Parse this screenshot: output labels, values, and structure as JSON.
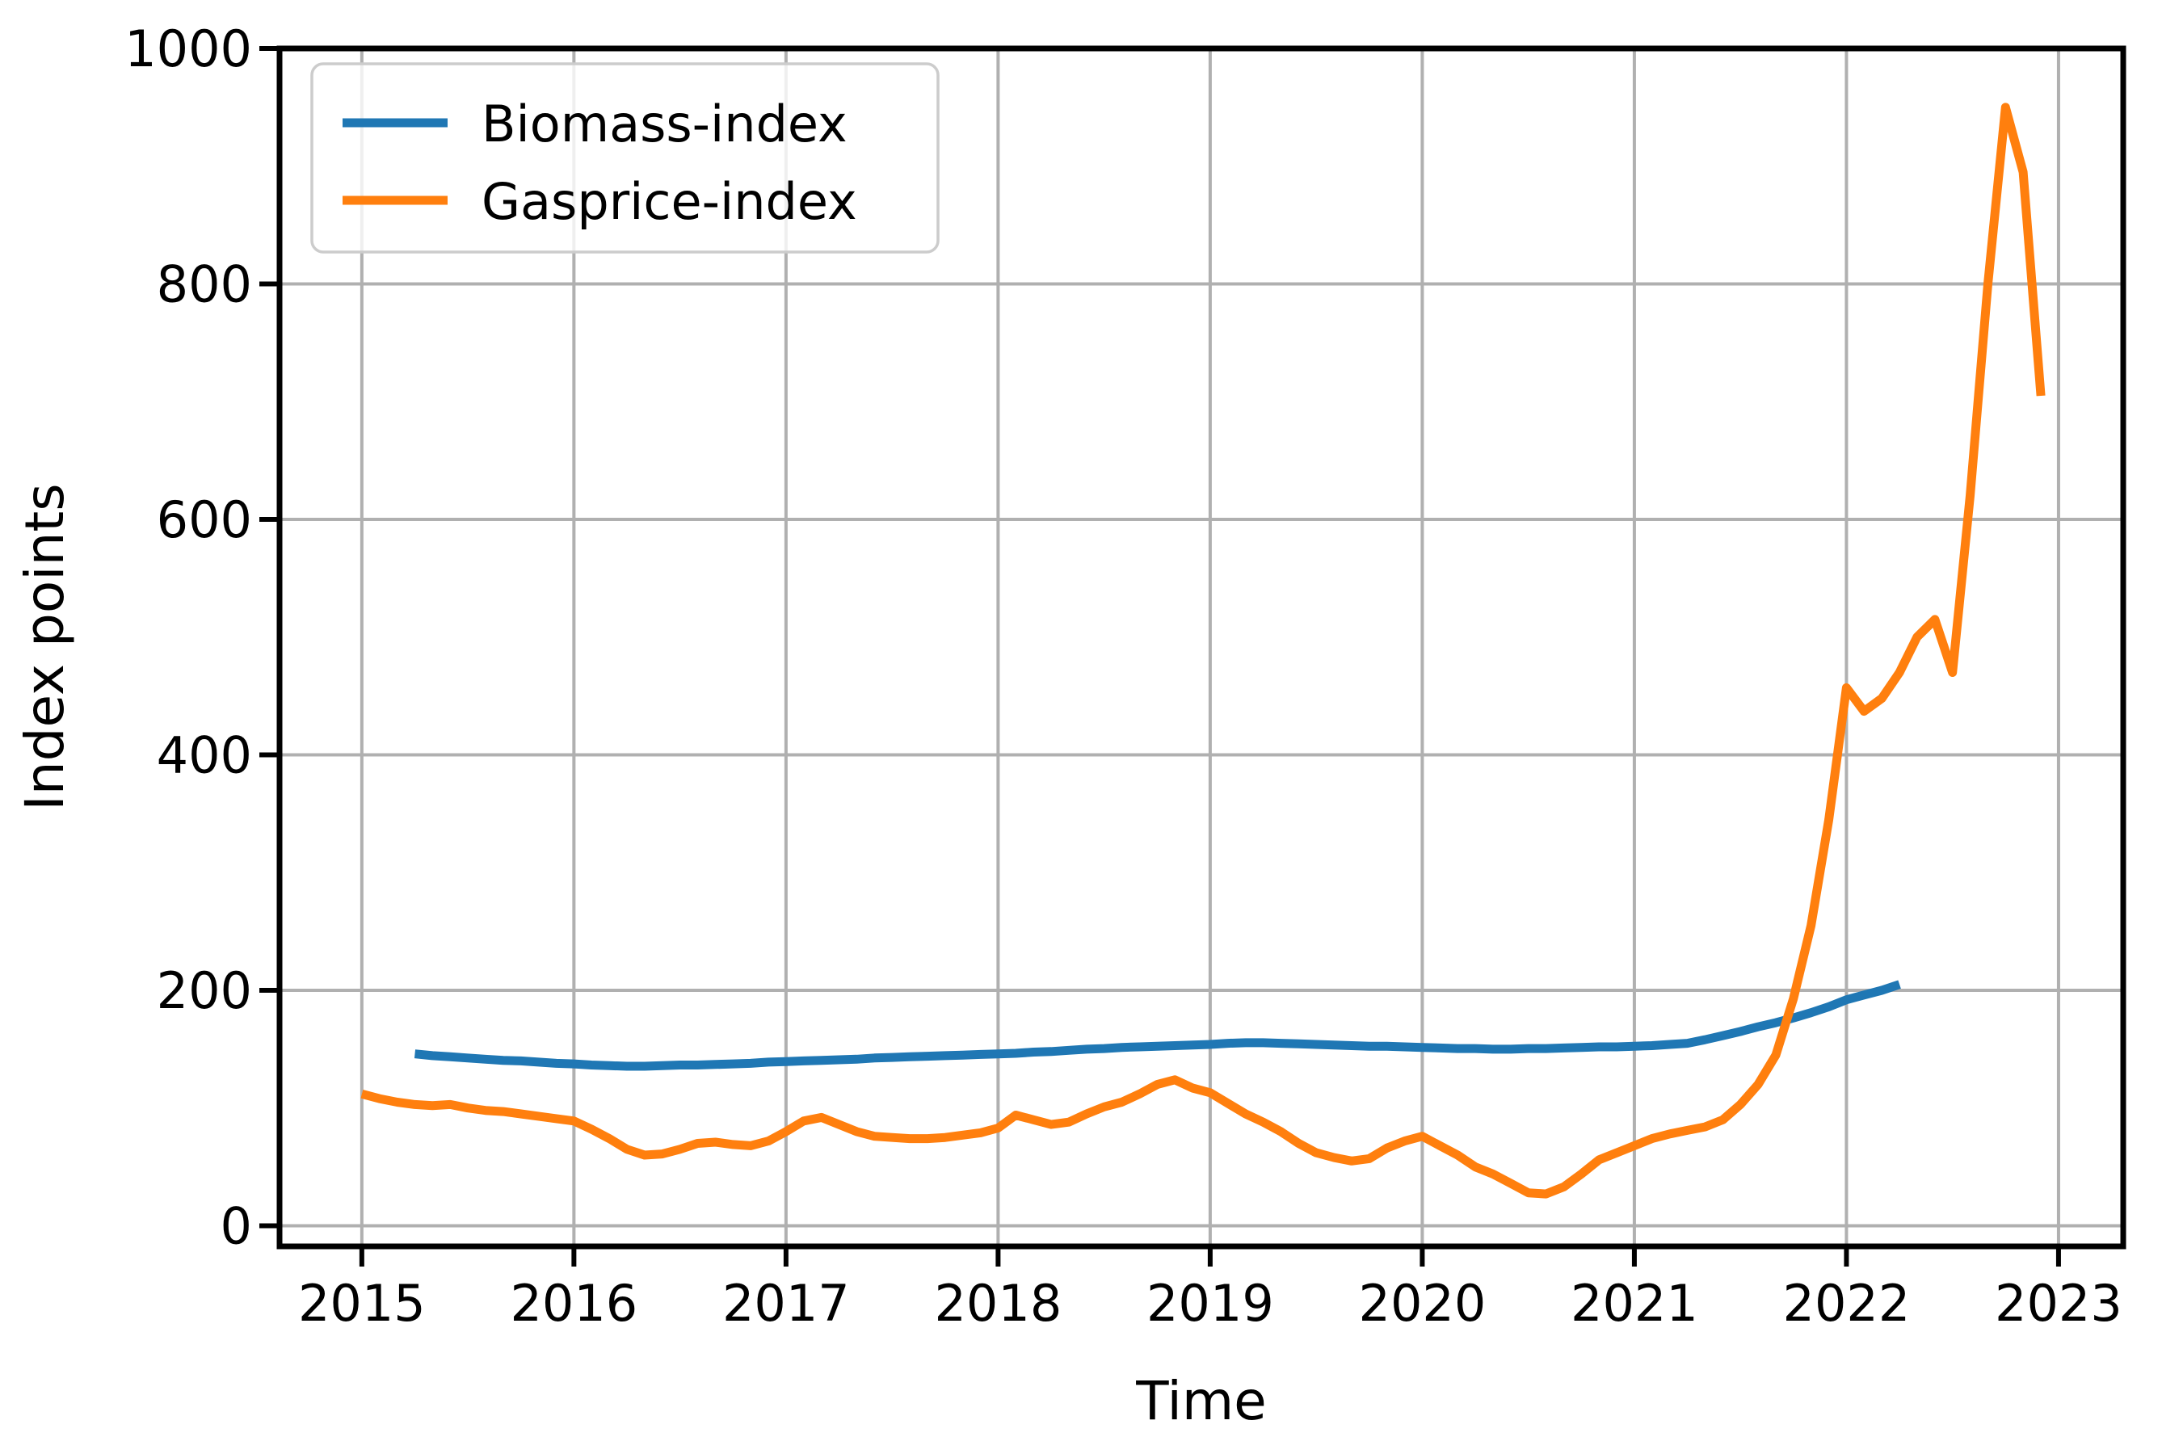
{
  "chart_data": {
    "type": "line",
    "title": "",
    "xlabel": "Time",
    "ylabel": "Index points",
    "x_ticks": [
      2015,
      2016,
      2017,
      2018,
      2019,
      2020,
      2021,
      2022,
      2023
    ],
    "y_ticks": [
      0,
      200,
      400,
      600,
      800,
      1000
    ],
    "xlim": [
      2014.612,
      2023.305
    ],
    "ylim": [
      -17.5,
      1000
    ],
    "grid": true,
    "grid_color": "#b0b0b0",
    "background": "#ffffff",
    "legend_position": "upper-left",
    "series": [
      {
        "name": "Biomass-index",
        "color": "#1f77b4",
        "x": [
          2015.25,
          2015.333,
          2015.417,
          2015.5,
          2015.583,
          2015.667,
          2015.75,
          2015.833,
          2015.917,
          2016.0,
          2016.083,
          2016.167,
          2016.25,
          2016.333,
          2016.417,
          2016.5,
          2016.583,
          2016.667,
          2016.75,
          2016.833,
          2016.917,
          2017.0,
          2017.083,
          2017.167,
          2017.25,
          2017.333,
          2017.417,
          2017.5,
          2017.583,
          2017.667,
          2017.75,
          2017.833,
          2017.917,
          2018.0,
          2018.083,
          2018.167,
          2018.25,
          2018.333,
          2018.417,
          2018.5,
          2018.583,
          2018.667,
          2018.75,
          2018.833,
          2018.917,
          2019.0,
          2019.083,
          2019.167,
          2019.25,
          2019.333,
          2019.417,
          2019.5,
          2019.583,
          2019.667,
          2019.75,
          2019.833,
          2019.917,
          2020.0,
          2020.083,
          2020.167,
          2020.25,
          2020.333,
          2020.417,
          2020.5,
          2020.583,
          2020.667,
          2020.75,
          2020.833,
          2020.917,
          2021.0,
          2021.083,
          2021.167,
          2021.25,
          2021.333,
          2021.417,
          2021.5,
          2021.583,
          2021.667,
          2021.75,
          2021.833,
          2021.917,
          2022.0,
          2022.083,
          2022.167,
          2022.25
        ],
        "values": [
          146,
          144.5,
          143.5,
          142.5,
          141.5,
          140.5,
          140,
          139,
          138,
          137.5,
          136.5,
          136,
          135.5,
          135.5,
          136,
          136.5,
          136.5,
          137,
          137.5,
          138,
          139,
          139.5,
          140,
          140.5,
          141,
          141.5,
          142.5,
          143,
          143.5,
          144,
          144.5,
          145,
          145.5,
          146,
          146.5,
          147.5,
          148,
          149,
          150,
          150.5,
          151.5,
          152,
          152.5,
          153,
          153.5,
          154,
          155,
          155.5,
          155.5,
          155,
          154.5,
          154,
          153.5,
          153,
          152.5,
          152.5,
          152,
          151.5,
          151,
          150.5,
          150.5,
          150,
          150,
          150.5,
          150.5,
          151,
          151.5,
          152,
          152,
          152.5,
          153,
          154,
          155,
          158,
          161.5,
          165,
          169,
          172.5,
          176.5,
          181,
          186,
          192,
          196,
          200,
          205
        ]
      },
      {
        "name": "Gasprice-index",
        "color": "#ff7f0e",
        "x": [
          2015.0,
          2015.083,
          2015.167,
          2015.25,
          2015.333,
          2015.417,
          2015.5,
          2015.583,
          2015.667,
          2015.75,
          2015.833,
          2015.917,
          2016.0,
          2016.083,
          2016.167,
          2016.25,
          2016.333,
          2016.417,
          2016.5,
          2016.583,
          2016.667,
          2016.75,
          2016.833,
          2016.917,
          2017.0,
          2017.083,
          2017.167,
          2017.25,
          2017.333,
          2017.417,
          2017.5,
          2017.583,
          2017.667,
          2017.75,
          2017.833,
          2017.917,
          2018.0,
          2018.083,
          2018.167,
          2018.25,
          2018.333,
          2018.417,
          2018.5,
          2018.583,
          2018.667,
          2018.75,
          2018.833,
          2018.917,
          2019.0,
          2019.083,
          2019.167,
          2019.25,
          2019.333,
          2019.417,
          2019.5,
          2019.583,
          2019.667,
          2019.75,
          2019.833,
          2019.917,
          2020.0,
          2020.083,
          2020.167,
          2020.25,
          2020.333,
          2020.417,
          2020.5,
          2020.583,
          2020.667,
          2020.75,
          2020.833,
          2020.917,
          2021.0,
          2021.083,
          2021.167,
          2021.25,
          2021.333,
          2021.417,
          2021.5,
          2021.583,
          2021.667,
          2021.75,
          2021.833,
          2021.917,
          2022.0,
          2022.083,
          2022.167,
          2022.25,
          2022.333,
          2022.417,
          2022.5,
          2022.583,
          2022.667,
          2022.75,
          2022.833,
          2022.917
        ],
        "values": [
          112,
          108,
          105,
          103,
          102,
          103,
          100,
          98,
          97,
          95,
          93,
          91,
          89,
          82,
          74,
          65,
          60,
          61,
          65,
          70,
          71,
          69,
          68,
          72,
          80,
          89,
          92,
          86,
          80,
          76,
          75,
          74,
          74,
          75,
          77,
          79,
          83,
          94,
          90,
          86,
          88,
          95,
          101,
          105,
          112,
          120,
          124,
          117,
          113,
          104,
          95,
          88,
          80,
          70,
          62,
          58,
          55,
          57,
          66,
          72,
          76,
          68,
          60,
          50,
          44,
          36,
          28,
          27,
          33,
          44,
          56,
          62,
          68,
          74,
          78,
          81,
          84,
          90,
          103,
          120,
          145,
          193,
          255,
          345,
          457,
          437,
          448,
          470,
          500,
          515,
          470,
          620,
          800,
          950,
          895,
          705
        ]
      }
    ]
  },
  "legend": {
    "items": [
      {
        "label": "Biomass-index",
        "color": "#1f77b4"
      },
      {
        "label": "Gasprice-index",
        "color": "#ff7f0e"
      }
    ]
  },
  "axes": {
    "xlabel": "Time",
    "ylabel": "Index points"
  }
}
